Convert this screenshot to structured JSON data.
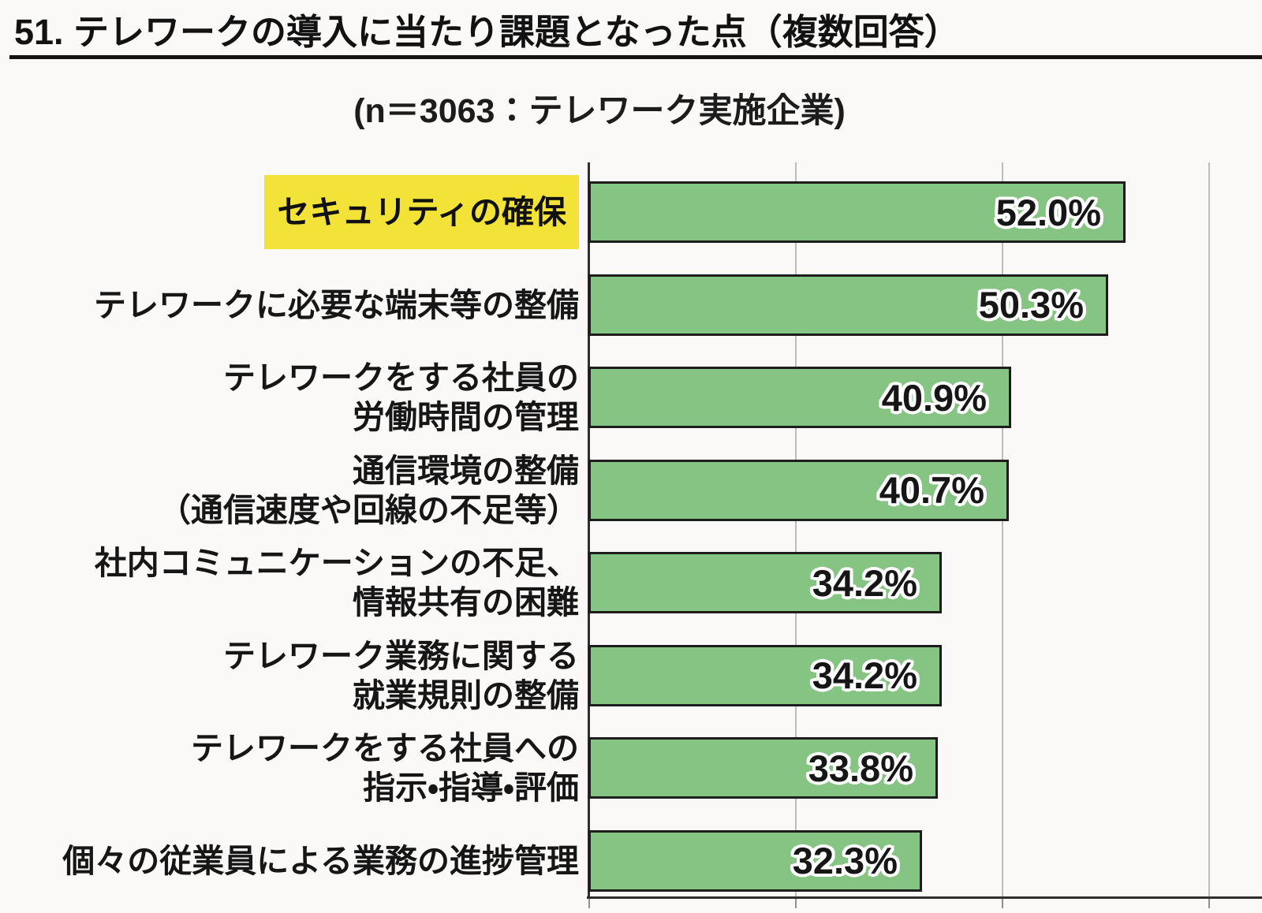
{
  "page": {
    "title": "51. テレワークの導入に当たり課題となった点（複数回答）",
    "subtitle": "(n＝3063：テレワーク実施企業)"
  },
  "chart_data": {
    "type": "bar",
    "orientation": "horizontal",
    "title": "51. テレワークの導入に当たり課題となった点（複数回答）",
    "subtitle": "(n＝3063：テレワーク実施企業)",
    "categories": [
      "セキュリティの確保",
      "テレワークに必要な端末等の整備",
      "テレワークをする社員の労働時間の管理",
      "通信環境の整備（通信速度や回線の不足等）",
      "社内コミュニケーションの不足、情報共有の困難",
      "テレワーク業務に関する就業規則の整備",
      "テレワークをする社員への指示・指導・評価",
      "個々の従業員による業務の進捗管理"
    ],
    "category_lines": [
      [
        "セキュリティの確保"
      ],
      [
        "テレワークに必要な端末等の整備"
      ],
      [
        "テレワークをする社員の",
        "労働時間の管理"
      ],
      [
        "通信環境の整備",
        "（通信速度や回線の不足等）"
      ],
      [
        "社内コミュニケーションの不足、",
        "情報共有の困難"
      ],
      [
        "テレワーク業務に関する",
        "就業規則の整備"
      ],
      [
        "テレワークをする社員への",
        "指示・指導・評価"
      ],
      [
        "個々の従業員による業務の進捗管理"
      ]
    ],
    "values": [
      52.0,
      50.3,
      40.9,
      40.7,
      34.2,
      34.2,
      33.8,
      32.3
    ],
    "value_labels": [
      "52.0%",
      "50.3%",
      "40.9%",
      "40.7%",
      "34.2%",
      "34.2%",
      "33.8%",
      "32.3%"
    ],
    "highlighted_index": 0,
    "highlighted_category": "セキュリティの確保",
    "xlim": [
      0,
      65
    ],
    "x_gridlines": [
      0,
      20,
      40,
      60
    ],
    "grid": true,
    "legend": false,
    "colors": {
      "bar_fill": "#86c483",
      "bar_border": "#1d1d1b",
      "highlight_bg": "#f3e338",
      "gridline": "#bcbcbc",
      "axis": "#2e2e2e",
      "text": "#171717",
      "background": "#faf9f7"
    }
  }
}
